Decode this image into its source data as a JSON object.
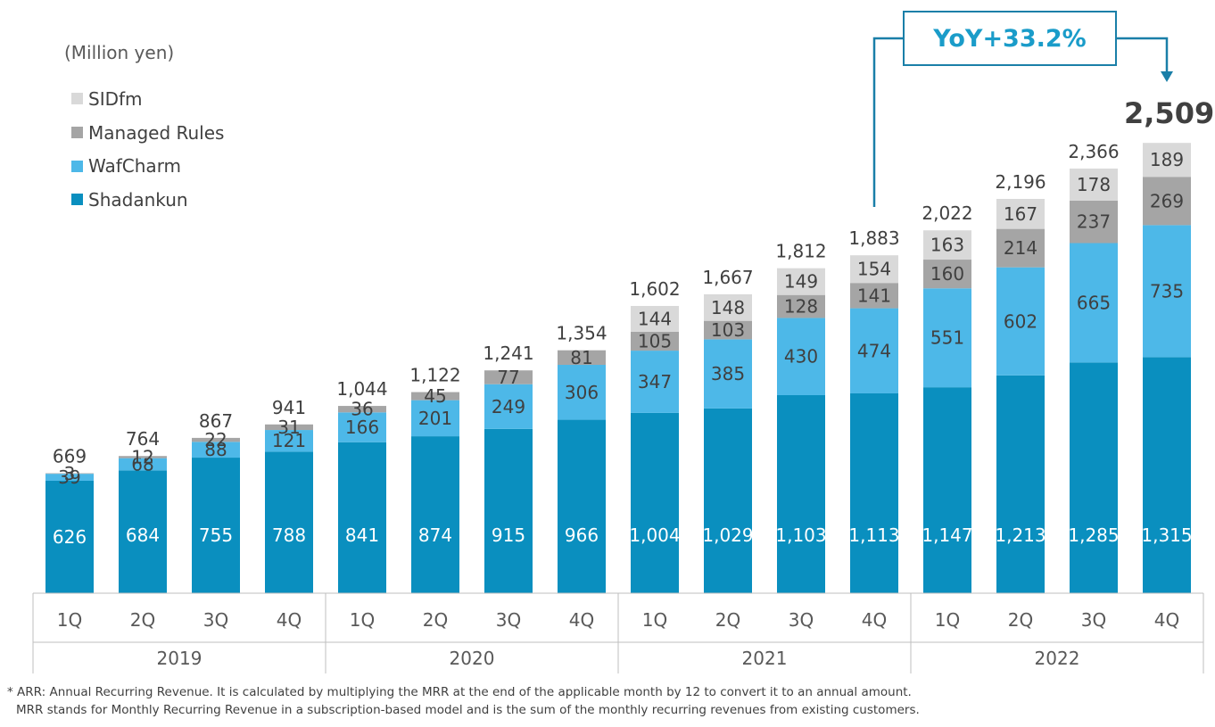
{
  "unit_label": "(Million yen)",
  "yoy_label": "YoY+33.2%",
  "highlight_total": "2,509",
  "highlight_mark": "*",
  "footnote": {
    "line1": "* ARR: Annual Recurring Revenue. It is calculated by multiplying the MRR at the end of the applicable month by 12 to convert it to an annual amount.",
    "line2": "MRR stands for Monthly Recurring Revenue in a subscription-based model and is the sum of the monthly recurring revenues from existing customers."
  },
  "legend": [
    {
      "label": "SIDfm",
      "color": "#d9d9d9"
    },
    {
      "label": "Managed Rules",
      "color": "#a5a5a5"
    },
    {
      "label": "WafCharm",
      "color": "#4db8e8"
    },
    {
      "label": "Shadankun",
      "color": "#0a8fbf"
    }
  ],
  "chart_data": {
    "type": "bar",
    "stacked": true,
    "categories": [
      "1Q",
      "2Q",
      "3Q",
      "4Q",
      "1Q",
      "2Q",
      "3Q",
      "4Q",
      "1Q",
      "2Q",
      "3Q",
      "4Q",
      "1Q",
      "2Q",
      "3Q",
      "4Q"
    ],
    "groups": [
      {
        "label": "2019",
        "span": 4
      },
      {
        "label": "2020",
        "span": 4
      },
      {
        "label": "2021",
        "span": 4
      },
      {
        "label": "2022",
        "span": 4
      }
    ],
    "series": [
      {
        "name": "Shadankun",
        "color": "#0a8fbf",
        "values": [
          626,
          684,
          755,
          788,
          841,
          874,
          915,
          966,
          1004,
          1029,
          1103,
          1113,
          1147,
          1213,
          1285,
          1315
        ],
        "labels": [
          "626",
          "684",
          "755",
          "788",
          "841",
          "874",
          "915",
          "966",
          "1,004",
          "1,029",
          "1,103",
          "1,113",
          "1,147",
          "1,213",
          "1,285",
          "1,315"
        ],
        "label_color": "#ffffff"
      },
      {
        "name": "WafCharm",
        "color": "#4db8e8",
        "values": [
          39,
          68,
          88,
          121,
          166,
          201,
          249,
          306,
          347,
          385,
          430,
          474,
          551,
          602,
          665,
          735
        ],
        "labels": [
          "39",
          "68",
          "88",
          "121",
          "166",
          "201",
          "249",
          "306",
          "347",
          "385",
          "430",
          "474",
          "551",
          "602",
          "665",
          "735"
        ],
        "label_color": "#404040"
      },
      {
        "name": "Managed Rules",
        "color": "#a5a5a5",
        "values": [
          3,
          12,
          22,
          31,
          36,
          45,
          77,
          81,
          105,
          103,
          128,
          141,
          160,
          214,
          237,
          269
        ],
        "labels": [
          "3",
          "12",
          "22",
          "31",
          "36",
          "45",
          "77",
          "81",
          "105",
          "103",
          "128",
          "141",
          "160",
          "214",
          "237",
          "269"
        ],
        "label_color": "#404040"
      },
      {
        "name": "SIDfm",
        "color": "#d9d9d9",
        "values": [
          0,
          0,
          0,
          0,
          0,
          0,
          0,
          0,
          144,
          148,
          149,
          154,
          163,
          167,
          178,
          189
        ],
        "labels": [
          "",
          "",
          "",
          "",
          "",
          "",
          "",
          "",
          "144",
          "148",
          "149",
          "154",
          "163",
          "167",
          "178",
          "189"
        ],
        "label_color": "#404040"
      }
    ],
    "totals": [
      "669",
      "764",
      "867",
      "941",
      "1,044",
      "1,122",
      "1,241",
      "1,354",
      "1,602",
      "1,667",
      "1,812",
      "1,883",
      "2,022",
      "2,196",
      "2,366",
      ""
    ],
    "ylim": [
      0,
      2509
    ]
  }
}
